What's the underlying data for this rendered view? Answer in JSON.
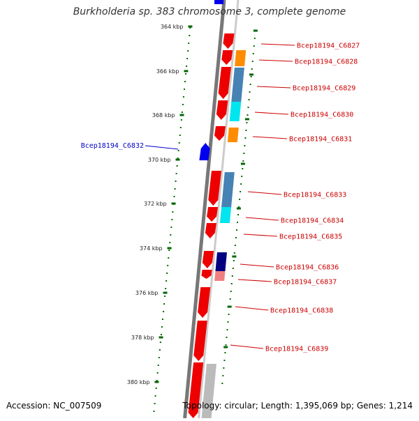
{
  "title": "Burkholderia sp. 383 chromosome 3, complete genome",
  "footer": {
    "accession": "Accession: NC_007509",
    "summary": "Topology: circular; Length: 1,395,069 bp; Genes: 1,214"
  },
  "scale": {
    "unit": "kbp",
    "ticks": [
      "364 kbp",
      "366 kbp",
      "368 kbp",
      "370 kbp",
      "372 kbp",
      "374 kbp",
      "376 kbp",
      "378 kbp",
      "380 kbp"
    ]
  },
  "genes": [
    {
      "label": "Bcep18194_C6827",
      "strand": "+",
      "color": "#cc0000"
    },
    {
      "label": "Bcep18194_C6828",
      "strand": "+",
      "color": "#cc0000"
    },
    {
      "label": "Bcep18194_C6829",
      "strand": "+",
      "color": "#cc0000"
    },
    {
      "label": "Bcep18194_C6830",
      "strand": "+",
      "color": "#cc0000"
    },
    {
      "label": "Bcep18194_C6831",
      "strand": "+",
      "color": "#cc0000"
    },
    {
      "label": "Bcep18194_C6832",
      "strand": "-",
      "color": "#0000cc"
    },
    {
      "label": "Bcep18194_C6833",
      "strand": "+",
      "color": "#cc0000"
    },
    {
      "label": "Bcep18194_C6834",
      "strand": "+",
      "color": "#cc0000"
    },
    {
      "label": "Bcep18194_C6835",
      "strand": "+",
      "color": "#cc0000"
    },
    {
      "label": "Bcep18194_C6836",
      "strand": "+",
      "color": "#cc0000"
    },
    {
      "label": "Bcep18194_C6837",
      "strand": "+",
      "color": "#cc0000"
    },
    {
      "label": "Bcep18194_C6838",
      "strand": "+",
      "color": "#cc0000"
    },
    {
      "label": "Bcep18194_C6839",
      "strand": "+",
      "color": "#cc0000"
    }
  ],
  "colors": {
    "forward_gene": "#ee0000",
    "reverse_gene": "#0000ee",
    "backbone": "#777777",
    "scale_ticks": "#006600",
    "cog_orange": "#ff8c00",
    "cog_steelblue": "#4682b4",
    "cog_cyan": "#00e5ee",
    "cog_navy": "#000080",
    "cog_pink": "#f08080",
    "cog_gray": "#bbbbbb"
  }
}
